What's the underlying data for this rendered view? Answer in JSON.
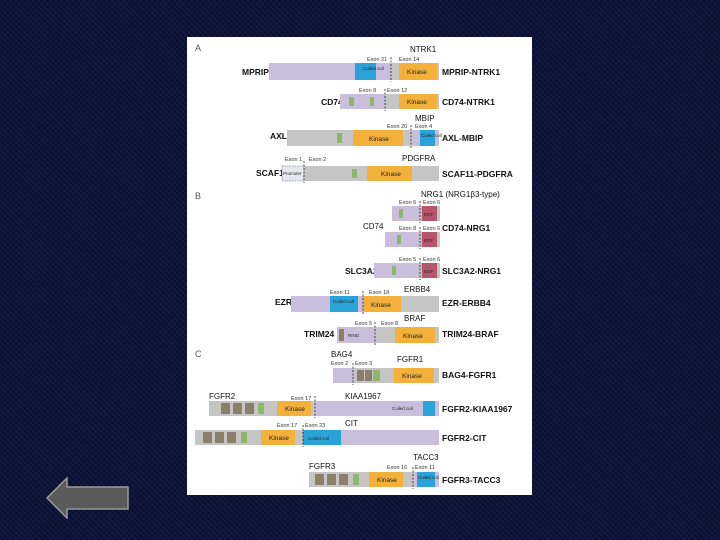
{
  "figure": {
    "sections": [
      {
        "letter": "A",
        "fusions": [
          {
            "partner_left": "MPRIP",
            "partner_right": "NTRK1",
            "fusion": "MPRIP-NTRK1",
            "exon_left": "Exon 21",
            "exon_right": "Exon 14",
            "domains": [
              "Coiled coil",
              "Kinase"
            ]
          },
          {
            "partner_left": "CD74",
            "fusion": "CD74-NTRK1",
            "exon_left": "Exon 8",
            "exon_right": "Exon 12",
            "domains": [
              "Kinase"
            ]
          },
          {
            "partner_left": "AXL",
            "partner_right": "MBIP",
            "fusion": "AXL-MBIP",
            "exon_left": "Exon 20",
            "exon_right": "Exon 4",
            "domains": [
              "Kinase",
              "Coiled coil"
            ]
          },
          {
            "partner_left": "SCAF11",
            "partner_right": "PDGFRA",
            "fusion": "SCAF11-PDGFRA",
            "exon_left": "Exon 1",
            "exon_right": "Exon 2",
            "domains": [
              "Promoter",
              "Kinase"
            ]
          }
        ]
      },
      {
        "letter": "B",
        "fusions": [
          {
            "partner_right": "NRG1 (NRG1β3-type)",
            "exon_left": "Exon 6",
            "exon_right": "Exon 6",
            "domains": [
              "EGF"
            ]
          },
          {
            "partner_left": "CD74",
            "fusion": "CD74-NRG1",
            "exon_left": "Exon 8",
            "exon_right": "Exon 6",
            "domains": [
              "EGF"
            ]
          },
          {
            "partner_left": "SLC3A2",
            "fusion": "SLC3A2-NRG1",
            "exon_left": "Exon 5",
            "exon_right": "Exon 6",
            "domains": [
              "EGF"
            ]
          },
          {
            "partner_left": "EZR",
            "partner_right": "ERBB4",
            "fusion": "EZR-ERBB4",
            "exon_left": "Exon 11",
            "exon_right": "Exon 18",
            "domains": [
              "Coiled coil",
              "Kinase"
            ]
          },
          {
            "partner_left": "TRIM24",
            "partner_right": "BRAF",
            "fusion": "TRIM24-BRAF",
            "exon_left": "Exon 5",
            "exon_right": "Exon 8",
            "domains": [
              "RING",
              "Kinase"
            ]
          }
        ]
      },
      {
        "letter": "C",
        "fusions": [
          {
            "partner_left": "BAG4",
            "partner_right": "FGFR1",
            "fusion": "BAG4-FGFR1",
            "exon_left": "Exon 2",
            "exon_right": "Exon 3",
            "domains": [
              "Kinase"
            ]
          },
          {
            "partner_left": "FGFR2",
            "partner_right": "KIAA1967",
            "fusion": "FGFR2-KIAA1967",
            "exon_left": "Exon 17",
            "domains": [
              "Kinase",
              "Coiled coil"
            ]
          },
          {
            "partner_right": "CIT",
            "fusion": "FGFR2-CIT",
            "exon_left": "Exon 17",
            "exon_right": "Exon 23",
            "domains": [
              "Kinase",
              "Coiled coil"
            ]
          },
          {
            "partner_left": "FGFR3",
            "partner_right": "TACC3",
            "fusion": "FGFR3-TACC3",
            "exon_left": "Exon 16",
            "exon_right": "Exon 11",
            "domains": [
              "Kinase",
              "Coiled coil"
            ]
          }
        ]
      }
    ],
    "small_domain_label": "Ig"
  },
  "nav": {
    "back_icon": "arrow-left-icon"
  },
  "colors": {
    "background": "#0c1238",
    "lavender": "#c9bfdc",
    "gray": "#c5c5c5",
    "kinase": "#f3b13b",
    "coiled_coil": "#2aa3d8",
    "egf": "#b6566a",
    "green": "#8db86a",
    "olive": "#8a8069"
  }
}
